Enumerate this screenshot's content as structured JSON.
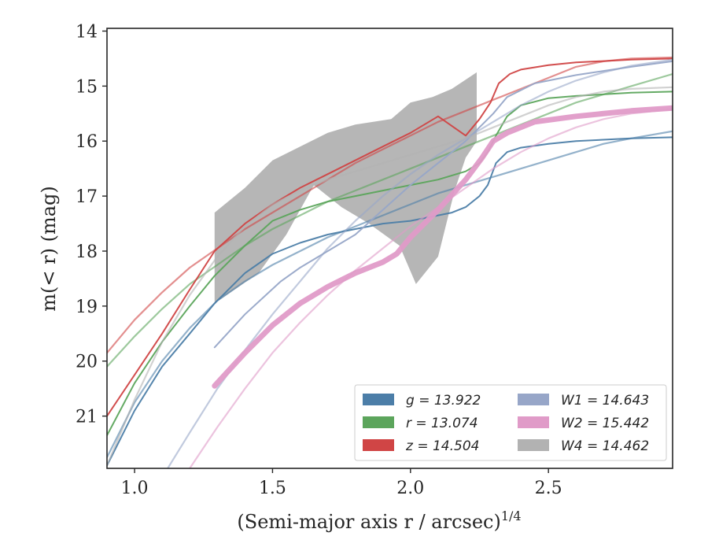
{
  "chart_data": {
    "type": "line",
    "xlabel": "(Semi-major axis r / arcsec)",
    "xlabel_power": "1/4",
    "ylabel": "m(< r) (mag)",
    "xlim": [
      0.9,
      2.95
    ],
    "ylim": [
      21.95,
      13.95
    ],
    "y_inverted": true,
    "x_ticks": [
      1.0,
      1.5,
      2.0,
      2.5
    ],
    "x_tick_labels": [
      "1.0",
      "1.5",
      "2.0",
      "2.5"
    ],
    "y_ticks": [
      14,
      15,
      16,
      17,
      18,
      19,
      20,
      21
    ],
    "y_tick_labels": [
      "14",
      "15",
      "16",
      "17",
      "18",
      "19",
      "20",
      "21"
    ],
    "legend_position": "lower-right",
    "legend": [
      {
        "label": "g = 13.922",
        "color": "#4c7ea8"
      },
      {
        "label": "r = 13.074",
        "color": "#5ca55c"
      },
      {
        "label": "z = 14.504",
        "color": "#d04545"
      },
      {
        "label": "W1 = 14.643",
        "color": "#97a6c8"
      },
      {
        "label": "W2 = 15.442",
        "color": "#e09bc8"
      },
      {
        "label": "W4 = 14.462",
        "color": "#b2b2b2"
      }
    ],
    "series": [
      {
        "name": "g",
        "color": "#4c7ea8",
        "kind": "data",
        "points": [
          [
            0.9,
            21.9
          ],
          [
            1.0,
            20.9
          ],
          [
            1.1,
            20.1
          ],
          [
            1.2,
            19.5
          ],
          [
            1.29,
            18.95
          ],
          [
            1.4,
            18.4
          ],
          [
            1.5,
            18.05
          ],
          [
            1.6,
            17.85
          ],
          [
            1.7,
            17.7
          ],
          [
            1.8,
            17.6
          ],
          [
            1.9,
            17.5
          ],
          [
            2.0,
            17.45
          ],
          [
            2.1,
            17.35
          ],
          [
            2.15,
            17.3
          ],
          [
            2.2,
            17.2
          ],
          [
            2.25,
            17.0
          ],
          [
            2.28,
            16.8
          ],
          [
            2.31,
            16.4
          ],
          [
            2.35,
            16.2
          ],
          [
            2.4,
            16.12
          ],
          [
            2.5,
            16.05
          ],
          [
            2.6,
            16.0
          ],
          [
            2.8,
            15.95
          ],
          [
            2.95,
            15.93
          ]
        ]
      },
      {
        "name": "g",
        "color": "#4c7ea8",
        "kind": "model",
        "points": [
          [
            0.9,
            21.75
          ],
          [
            1.0,
            20.75
          ],
          [
            1.1,
            20.0
          ],
          [
            1.2,
            19.4
          ],
          [
            1.3,
            18.9
          ],
          [
            1.4,
            18.55
          ],
          [
            1.5,
            18.25
          ],
          [
            1.6,
            18.0
          ],
          [
            1.7,
            17.75
          ],
          [
            1.8,
            17.55
          ],
          [
            1.9,
            17.35
          ],
          [
            2.0,
            17.15
          ],
          [
            2.1,
            16.95
          ],
          [
            2.2,
            16.8
          ],
          [
            2.3,
            16.65
          ],
          [
            2.4,
            16.5
          ],
          [
            2.5,
            16.35
          ],
          [
            2.6,
            16.2
          ],
          [
            2.7,
            16.05
          ],
          [
            2.8,
            15.95
          ],
          [
            2.95,
            15.82
          ]
        ]
      },
      {
        "name": "r",
        "color": "#5ca55c",
        "kind": "data",
        "points": [
          [
            0.9,
            21.35
          ],
          [
            1.0,
            20.4
          ],
          [
            1.1,
            19.65
          ],
          [
            1.2,
            19.0
          ],
          [
            1.29,
            18.45
          ],
          [
            1.4,
            17.9
          ],
          [
            1.5,
            17.45
          ],
          [
            1.6,
            17.25
          ],
          [
            1.7,
            17.1
          ],
          [
            1.8,
            17.0
          ],
          [
            1.9,
            16.9
          ],
          [
            2.0,
            16.8
          ],
          [
            2.1,
            16.7
          ],
          [
            2.2,
            16.55
          ],
          [
            2.25,
            16.4
          ],
          [
            2.28,
            16.2
          ],
          [
            2.31,
            15.9
          ],
          [
            2.35,
            15.55
          ],
          [
            2.4,
            15.35
          ],
          [
            2.5,
            15.22
          ],
          [
            2.6,
            15.18
          ],
          [
            2.8,
            15.12
          ],
          [
            2.95,
            15.1
          ]
        ]
      },
      {
        "name": "r",
        "color": "#5ca55c",
        "kind": "model",
        "points": [
          [
            0.9,
            20.1
          ],
          [
            1.0,
            19.55
          ],
          [
            1.1,
            19.05
          ],
          [
            1.2,
            18.6
          ],
          [
            1.3,
            18.25
          ],
          [
            1.4,
            17.9
          ],
          [
            1.5,
            17.6
          ],
          [
            1.6,
            17.35
          ],
          [
            1.7,
            17.1
          ],
          [
            1.8,
            16.9
          ],
          [
            1.9,
            16.7
          ],
          [
            2.0,
            16.5
          ],
          [
            2.1,
            16.3
          ],
          [
            2.2,
            16.1
          ],
          [
            2.3,
            15.9
          ],
          [
            2.4,
            15.7
          ],
          [
            2.5,
            15.5
          ],
          [
            2.6,
            15.3
          ],
          [
            2.7,
            15.15
          ],
          [
            2.8,
            15.0
          ],
          [
            2.95,
            14.78
          ]
        ]
      },
      {
        "name": "z",
        "color": "#d04545",
        "kind": "data",
        "points": [
          [
            0.9,
            21.0
          ],
          [
            1.0,
            20.25
          ],
          [
            1.1,
            19.5
          ],
          [
            1.2,
            18.7
          ],
          [
            1.29,
            18.0
          ],
          [
            1.4,
            17.5
          ],
          [
            1.5,
            17.15
          ],
          [
            1.6,
            16.85
          ],
          [
            1.7,
            16.6
          ],
          [
            1.8,
            16.35
          ],
          [
            1.9,
            16.1
          ],
          [
            2.0,
            15.85
          ],
          [
            2.1,
            15.55
          ],
          [
            2.2,
            15.9
          ],
          [
            2.25,
            15.6
          ],
          [
            2.29,
            15.3
          ],
          [
            2.32,
            14.95
          ],
          [
            2.36,
            14.78
          ],
          [
            2.4,
            14.7
          ],
          [
            2.5,
            14.62
          ],
          [
            2.6,
            14.57
          ],
          [
            2.8,
            14.52
          ],
          [
            2.95,
            14.5
          ]
        ]
      },
      {
        "name": "z",
        "color": "#d04545",
        "kind": "model",
        "points": [
          [
            0.9,
            19.85
          ],
          [
            1.0,
            19.25
          ],
          [
            1.1,
            18.75
          ],
          [
            1.2,
            18.3
          ],
          [
            1.3,
            17.95
          ],
          [
            1.4,
            17.6
          ],
          [
            1.5,
            17.3
          ],
          [
            1.6,
            17.0
          ],
          [
            1.7,
            16.7
          ],
          [
            1.8,
            16.4
          ],
          [
            1.9,
            16.15
          ],
          [
            2.0,
            15.9
          ],
          [
            2.1,
            15.65
          ],
          [
            2.2,
            15.45
          ],
          [
            2.3,
            15.25
          ],
          [
            2.4,
            15.05
          ],
          [
            2.5,
            14.85
          ],
          [
            2.6,
            14.65
          ],
          [
            2.7,
            14.55
          ],
          [
            2.8,
            14.5
          ],
          [
            2.95,
            14.48
          ]
        ]
      },
      {
        "name": "W1",
        "color": "#97a6c8",
        "kind": "data",
        "points": [
          [
            1.29,
            19.75
          ],
          [
            1.4,
            19.15
          ],
          [
            1.53,
            18.55
          ],
          [
            1.6,
            18.3
          ],
          [
            1.7,
            18.0
          ],
          [
            1.8,
            17.7
          ],
          [
            1.9,
            17.25
          ],
          [
            2.0,
            16.8
          ],
          [
            2.1,
            16.4
          ],
          [
            2.2,
            16.0
          ],
          [
            2.26,
            15.7
          ],
          [
            2.3,
            15.5
          ],
          [
            2.35,
            15.2
          ],
          [
            2.45,
            14.95
          ],
          [
            2.6,
            14.8
          ],
          [
            2.8,
            14.65
          ],
          [
            2.95,
            14.55
          ]
        ]
      },
      {
        "name": "W1",
        "color": "#97a6c8",
        "kind": "model",
        "points": [
          [
            1.12,
            21.95
          ],
          [
            1.2,
            21.3
          ],
          [
            1.3,
            20.5
          ],
          [
            1.4,
            19.8
          ],
          [
            1.5,
            19.15
          ],
          [
            1.6,
            18.55
          ],
          [
            1.7,
            17.95
          ],
          [
            1.8,
            17.45
          ],
          [
            1.9,
            17.0
          ],
          [
            2.0,
            16.6
          ],
          [
            2.1,
            16.25
          ],
          [
            2.2,
            15.95
          ],
          [
            2.3,
            15.65
          ],
          [
            2.4,
            15.35
          ],
          [
            2.5,
            15.1
          ],
          [
            2.6,
            14.9
          ],
          [
            2.7,
            14.75
          ],
          [
            2.8,
            14.63
          ],
          [
            2.95,
            14.52
          ]
        ]
      },
      {
        "name": "W2",
        "color": "#e09bc8",
        "kind": "data",
        "points": [
          [
            1.29,
            20.45
          ],
          [
            1.4,
            19.85
          ],
          [
            1.5,
            19.35
          ],
          [
            1.6,
            18.95
          ],
          [
            1.7,
            18.65
          ],
          [
            1.8,
            18.4
          ],
          [
            1.9,
            18.2
          ],
          [
            1.95,
            18.05
          ],
          [
            2.0,
            17.75
          ],
          [
            2.1,
            17.25
          ],
          [
            2.2,
            16.7
          ],
          [
            2.26,
            16.3
          ],
          [
            2.3,
            16.0
          ],
          [
            2.35,
            15.85
          ],
          [
            2.45,
            15.65
          ],
          [
            2.6,
            15.55
          ],
          [
            2.8,
            15.45
          ],
          [
            2.95,
            15.4
          ]
        ]
      },
      {
        "name": "W2",
        "color": "#e09bc8",
        "kind": "model",
        "points": [
          [
            1.2,
            21.95
          ],
          [
            1.3,
            21.2
          ],
          [
            1.4,
            20.5
          ],
          [
            1.5,
            19.85
          ],
          [
            1.6,
            19.3
          ],
          [
            1.7,
            18.8
          ],
          [
            1.8,
            18.35
          ],
          [
            1.9,
            17.95
          ],
          [
            2.0,
            17.55
          ],
          [
            2.1,
            17.2
          ],
          [
            2.2,
            16.85
          ],
          [
            2.3,
            16.5
          ],
          [
            2.4,
            16.2
          ],
          [
            2.5,
            15.95
          ],
          [
            2.6,
            15.75
          ],
          [
            2.7,
            15.6
          ],
          [
            2.8,
            15.5
          ],
          [
            2.95,
            15.42
          ]
        ]
      },
      {
        "name": "W4",
        "color": "#b2b2b2",
        "kind": "model",
        "points": [
          [
            0.9,
            21.9
          ],
          [
            1.0,
            20.7
          ],
          [
            1.1,
            19.65
          ],
          [
            1.2,
            18.8
          ],
          [
            1.3,
            18.1
          ],
          [
            1.4,
            17.55
          ],
          [
            1.5,
            17.15
          ],
          [
            1.6,
            16.9
          ],
          [
            1.7,
            16.7
          ],
          [
            1.8,
            16.55
          ],
          [
            1.9,
            16.4
          ],
          [
            2.0,
            16.25
          ],
          [
            2.1,
            16.1
          ],
          [
            2.2,
            15.95
          ],
          [
            2.3,
            15.75
          ],
          [
            2.4,
            15.55
          ],
          [
            2.5,
            15.35
          ],
          [
            2.6,
            15.2
          ],
          [
            2.7,
            15.1
          ],
          [
            2.8,
            15.05
          ],
          [
            2.95,
            15.02
          ]
        ]
      }
    ],
    "w4_band": {
      "color": "#b2b2b2",
      "upper": [
        [
          1.29,
          17.3
        ],
        [
          1.4,
          16.85
        ],
        [
          1.5,
          16.35
        ],
        [
          1.6,
          16.1
        ],
        [
          1.7,
          15.85
        ],
        [
          1.8,
          15.7
        ],
        [
          1.93,
          15.6
        ],
        [
          2.0,
          15.3
        ],
        [
          2.08,
          15.2
        ],
        [
          2.15,
          15.05
        ],
        [
          2.24,
          14.75
        ]
      ],
      "lower": [
        [
          2.24,
          16.0
        ],
        [
          2.2,
          16.3
        ],
        [
          2.16,
          16.9
        ],
        [
          2.1,
          18.1
        ],
        [
          2.02,
          18.6
        ],
        [
          1.96,
          17.9
        ],
        [
          1.85,
          17.5
        ],
        [
          1.75,
          17.2
        ],
        [
          1.65,
          16.8
        ],
        [
          1.55,
          17.7
        ],
        [
          1.45,
          18.4
        ],
        [
          1.29,
          18.95
        ]
      ]
    }
  }
}
